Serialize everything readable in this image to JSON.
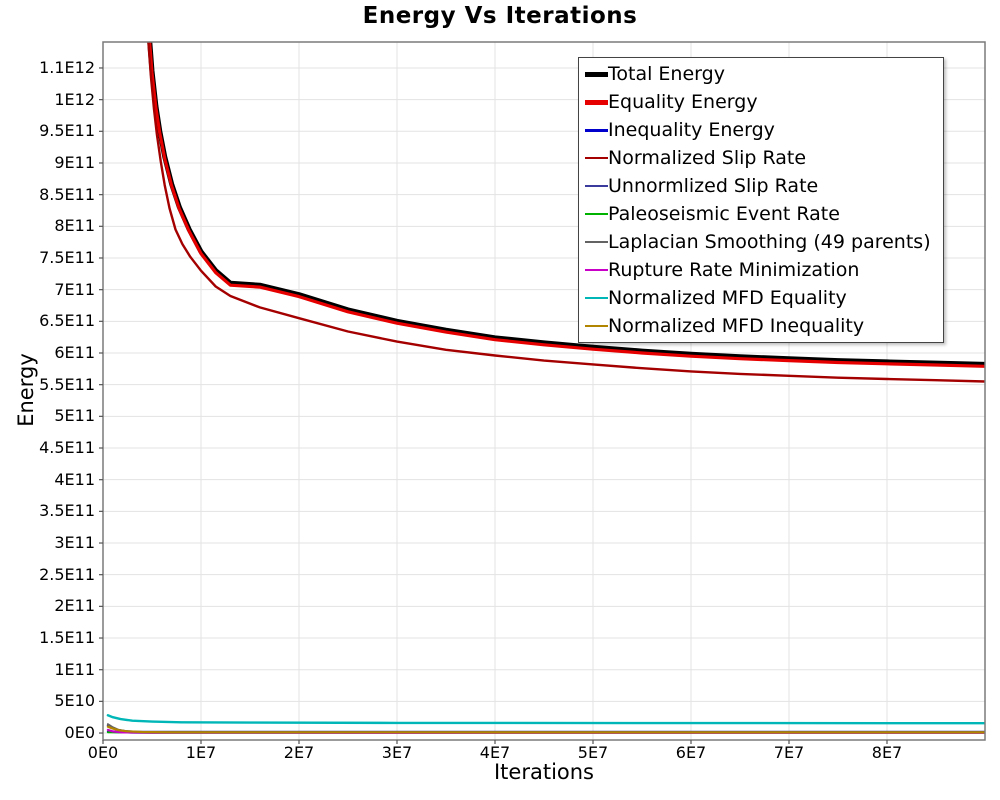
{
  "title": "Energy Vs Iterations",
  "axes": {
    "x_label": "Iterations",
    "y_label": "Energy"
  },
  "legend": {
    "items": [
      {
        "label": "Total Energy",
        "color": "#000000",
        "thickness": 5
      },
      {
        "label": "Equality Energy",
        "color": "#e60000",
        "thickness": 5
      },
      {
        "label": "Inequality Energy",
        "color": "#0000cc",
        "thickness": 3
      },
      {
        "label": "Normalized Slip Rate",
        "color": "#a40000",
        "thickness": 2.5
      },
      {
        "label": "Unnormlized Slip Rate",
        "color": "#3b3b9e",
        "thickness": 2.5
      },
      {
        "label": "Paleoseismic Event Rate",
        "color": "#00b200",
        "thickness": 2.5
      },
      {
        "label": "Laplacian Smoothing (49 parents)",
        "color": "#636363",
        "thickness": 2.5
      },
      {
        "label": "Rupture Rate Minimization",
        "color": "#c800c8",
        "thickness": 2.5
      },
      {
        "label": "Normalized MFD Equality",
        "color": "#00b6b6",
        "thickness": 2.5
      },
      {
        "label": "Normalized MFD Inequality",
        "color": "#b28500",
        "thickness": 2.5
      }
    ]
  },
  "chart_data": {
    "type": "line",
    "title": "Energy Vs Iterations",
    "xlabel": "Iterations",
    "ylabel": "Energy",
    "grid": true,
    "legend_position": "top-right-inside",
    "x_unit": 10000000.0,
    "y_unit": 1000000000.0,
    "x_range": [
      0,
      9.0
    ],
    "y_range": [
      -11,
      1091
    ],
    "x_ticks": [
      {
        "value": 0,
        "label": "0E0"
      },
      {
        "value": 1,
        "label": "1E7"
      },
      {
        "value": 2,
        "label": "2E7"
      },
      {
        "value": 3,
        "label": "3E7"
      },
      {
        "value": 4,
        "label": "4E7"
      },
      {
        "value": 5,
        "label": "5E7"
      },
      {
        "value": 6,
        "label": "6E7"
      },
      {
        "value": 7,
        "label": "7E7"
      },
      {
        "value": 8,
        "label": "8E7"
      }
    ],
    "y_ticks": [
      {
        "value": 0,
        "label": "0E0"
      },
      {
        "value": 50,
        "label": "5E10"
      },
      {
        "value": 100,
        "label": "1E11"
      },
      {
        "value": 150,
        "label": "1.5E11"
      },
      {
        "value": 200,
        "label": "2E11"
      },
      {
        "value": 250,
        "label": "2.5E11"
      },
      {
        "value": 300,
        "label": "3E11"
      },
      {
        "value": 350,
        "label": "3.5E11"
      },
      {
        "value": 400,
        "label": "4E11"
      },
      {
        "value": 450,
        "label": "4.5E11"
      },
      {
        "value": 500,
        "label": "5E11"
      },
      {
        "value": 550,
        "label": "5.5E11"
      },
      {
        "value": 600,
        "label": "6E11"
      },
      {
        "value": 650,
        "label": "6.5E11"
      },
      {
        "value": 700,
        "label": "7E11"
      },
      {
        "value": 750,
        "label": "7.5E11"
      },
      {
        "value": 800,
        "label": "8E11"
      },
      {
        "value": 850,
        "label": "8.5E11"
      },
      {
        "value": 900,
        "label": "9E11"
      },
      {
        "value": 950,
        "label": "9.5E11"
      },
      {
        "value": 1000,
        "label": "1E12"
      },
      {
        "value": 1050,
        "label": "1.1E12"
      }
    ],
    "series": [
      {
        "name": "Total Energy",
        "color": "#000000",
        "width": 5,
        "points": [
          [
            0.44,
            1175
          ],
          [
            0.47,
            1105
          ],
          [
            0.5,
            1045
          ],
          [
            0.54,
            990
          ],
          [
            0.58,
            950
          ],
          [
            0.63,
            910
          ],
          [
            0.7,
            867
          ],
          [
            0.78,
            830
          ],
          [
            0.88,
            795
          ],
          [
            1.0,
            760
          ],
          [
            1.15,
            730
          ],
          [
            1.3,
            710
          ],
          [
            1.6,
            707
          ],
          [
            2.0,
            692
          ],
          [
            2.5,
            668
          ],
          [
            3.0,
            650
          ],
          [
            3.5,
            636
          ],
          [
            4.0,
            624
          ],
          [
            4.5,
            616
          ],
          [
            5.0,
            609
          ],
          [
            5.5,
            603
          ],
          [
            6.0,
            598
          ],
          [
            6.5,
            594
          ],
          [
            7.0,
            591
          ],
          [
            7.5,
            588
          ],
          [
            8.0,
            586
          ],
          [
            8.5,
            584
          ],
          [
            9.0,
            582
          ]
        ]
      },
      {
        "name": "Equality Energy",
        "color": "#e60000",
        "width": 3.2,
        "points": [
          [
            0.44,
            1172
          ],
          [
            0.47,
            1102
          ],
          [
            0.5,
            1042
          ],
          [
            0.54,
            987
          ],
          [
            0.58,
            947
          ],
          [
            0.63,
            907
          ],
          [
            0.7,
            864
          ],
          [
            0.78,
            827
          ],
          [
            0.88,
            792
          ],
          [
            1.0,
            757
          ],
          [
            1.15,
            727
          ],
          [
            1.3,
            707
          ],
          [
            1.6,
            704
          ],
          [
            2.0,
            689
          ],
          [
            2.5,
            665
          ],
          [
            3.0,
            647
          ],
          [
            3.5,
            633
          ],
          [
            4.0,
            621
          ],
          [
            4.5,
            613
          ],
          [
            5.0,
            606
          ],
          [
            5.5,
            600
          ],
          [
            6.0,
            595
          ],
          [
            6.5,
            591
          ],
          [
            7.0,
            588
          ],
          [
            7.5,
            585
          ],
          [
            8.0,
            583
          ],
          [
            8.5,
            581
          ],
          [
            9.0,
            579
          ]
        ]
      },
      {
        "name": "Inequality Energy",
        "color": "#0000cc",
        "width": 2.2,
        "points": [
          [
            0.05,
            2.0
          ],
          [
            0.3,
            0.9
          ],
          [
            9.0,
            0.8
          ]
        ]
      },
      {
        "name": "Normalized Slip Rate",
        "color": "#a40000",
        "width": 2.4,
        "points": [
          [
            0.43,
            1175
          ],
          [
            0.45,
            1120
          ],
          [
            0.47,
            1075
          ],
          [
            0.49,
            1035
          ],
          [
            0.52,
            985
          ],
          [
            0.55,
            945
          ],
          [
            0.59,
            902
          ],
          [
            0.63,
            865
          ],
          [
            0.68,
            828
          ],
          [
            0.74,
            795
          ],
          [
            0.81,
            772
          ],
          [
            0.89,
            752
          ],
          [
            1.0,
            730
          ],
          [
            1.15,
            705
          ],
          [
            1.3,
            690
          ],
          [
            1.6,
            672
          ],
          [
            2.0,
            655
          ],
          [
            2.5,
            634
          ],
          [
            3.0,
            618
          ],
          [
            3.5,
            605
          ],
          [
            4.0,
            596
          ],
          [
            4.5,
            588
          ],
          [
            5.0,
            582
          ],
          [
            5.5,
            576
          ],
          [
            6.0,
            571
          ],
          [
            6.5,
            567
          ],
          [
            7.0,
            564
          ],
          [
            7.5,
            561
          ],
          [
            8.0,
            559
          ],
          [
            8.5,
            557
          ],
          [
            9.0,
            555
          ]
        ]
      },
      {
        "name": "Unnormlized Slip Rate",
        "color": "#3b3b9e",
        "width": 2.2,
        "points": [
          [
            0.05,
            12
          ],
          [
            0.1,
            8
          ],
          [
            0.15,
            5
          ],
          [
            0.22,
            3
          ],
          [
            0.35,
            2.0
          ],
          [
            0.6,
            1.8
          ],
          [
            9.0,
            1.8
          ]
        ]
      },
      {
        "name": "Paleoseismic Event Rate",
        "color": "#00b200",
        "width": 2,
        "points": [
          [
            0.05,
            1.2
          ],
          [
            0.5,
            0.6
          ],
          [
            9.0,
            0.6
          ]
        ]
      },
      {
        "name": "Laplacian Smoothing (49 parents)",
        "color": "#636363",
        "width": 2,
        "points": [
          [
            0.05,
            14
          ],
          [
            0.1,
            9
          ],
          [
            0.16,
            5
          ],
          [
            0.25,
            2.5
          ],
          [
            0.4,
            1.4
          ],
          [
            9.0,
            1.2
          ]
        ]
      },
      {
        "name": "Rupture Rate Minimization",
        "color": "#c800c8",
        "width": 2.2,
        "points": [
          [
            0.05,
            5
          ],
          [
            0.1,
            2.5
          ],
          [
            0.2,
            1.0
          ],
          [
            0.5,
            0.5
          ],
          [
            9.0,
            0.4
          ]
        ]
      },
      {
        "name": "Normalized MFD Equality",
        "color": "#00b6b6",
        "width": 2.4,
        "points": [
          [
            0.05,
            28
          ],
          [
            0.1,
            25
          ],
          [
            0.18,
            22
          ],
          [
            0.3,
            19.5
          ],
          [
            0.5,
            18
          ],
          [
            0.8,
            17
          ],
          [
            1.5,
            16.5
          ],
          [
            3.0,
            16
          ],
          [
            9.0,
            15.5
          ]
        ]
      },
      {
        "name": "Normalized MFD Inequality",
        "color": "#b28500",
        "width": 2.2,
        "points": [
          [
            0.05,
            10
          ],
          [
            0.1,
            7
          ],
          [
            0.16,
            4.5
          ],
          [
            0.24,
            2.8
          ],
          [
            0.4,
            1.6
          ],
          [
            0.7,
            1.2
          ],
          [
            9.0,
            1.0
          ]
        ]
      }
    ]
  }
}
